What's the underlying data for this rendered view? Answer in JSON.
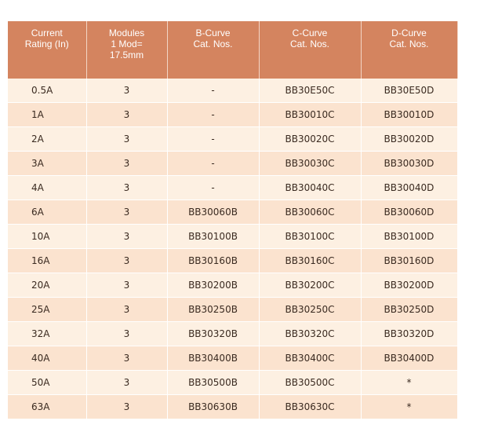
{
  "table": {
    "header": [
      "Current\nRating (In)",
      "Modules\n1 Mod=\n17.5mm",
      "B-Curve\nCat. Nos.",
      "C-Curve\nCat. Nos.",
      "D-Curve\nCat. Nos."
    ],
    "rows": [
      [
        "0.5A",
        "3",
        "-",
        "BB30E50C",
        "BB30E50D"
      ],
      [
        "1A",
        "3",
        "-",
        "BB30010C",
        "BB30010D"
      ],
      [
        "2A",
        "3",
        "-",
        "BB30020C",
        "BB30020D"
      ],
      [
        "3A",
        "3",
        "-",
        "BB30030C",
        "BB30030D"
      ],
      [
        "4A",
        "3",
        "-",
        "BB30040C",
        "BB30040D"
      ],
      [
        "6A",
        "3",
        "BB30060B",
        "BB30060C",
        "BB30060D"
      ],
      [
        "10A",
        "3",
        "BB30100B",
        "BB30100C",
        "BB30100D"
      ],
      [
        "16A",
        "3",
        "BB30160B",
        "BB30160C",
        "BB30160D"
      ],
      [
        "20A",
        "3",
        "BB30200B",
        "BB30200C",
        "BB30200D"
      ],
      [
        "25A",
        "3",
        "BB30250B",
        "BB30250C",
        "BB30250D"
      ],
      [
        "32A",
        "3",
        "BB30320B",
        "BB30320C",
        "BB30320D"
      ],
      [
        "40A",
        "3",
        "BB30400B",
        "BB30400C",
        "BB30400D"
      ],
      [
        "50A",
        "3",
        "BB30500B",
        "BB30500C",
        "*"
      ],
      [
        "63A",
        "3",
        "BB30630B",
        "BB30630C",
        "*"
      ]
    ]
  }
}
